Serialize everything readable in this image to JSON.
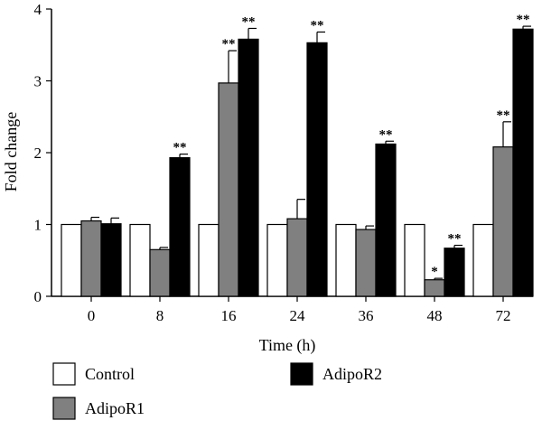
{
  "chart_data": {
    "type": "bar",
    "xlabel": "Time (h)",
    "ylabel": "Fold change",
    "ylim": [
      0,
      4
    ],
    "yticks": [
      "0",
      "1",
      "2",
      "3",
      "4"
    ],
    "categories": [
      "0",
      "8",
      "16",
      "24",
      "36",
      "48",
      "72"
    ],
    "series": [
      {
        "name": "Control",
        "color": "#ffffff",
        "values": [
          1.0,
          1.0,
          1.0,
          1.0,
          1.0,
          1.0,
          1.0
        ],
        "errors": [
          0,
          0,
          0,
          0,
          0,
          0,
          0
        ],
        "significance": [
          "",
          "",
          "",
          "",
          "",
          "",
          ""
        ]
      },
      {
        "name": "AdipoR1",
        "color": "#808080",
        "values": [
          1.05,
          0.65,
          2.97,
          1.08,
          0.93,
          0.23,
          2.08
        ],
        "errors": [
          0.05,
          0.03,
          0.45,
          0.27,
          0.05,
          0.02,
          0.35
        ],
        "significance": [
          "",
          "",
          "**",
          "",
          "",
          "*",
          "**"
        ]
      },
      {
        "name": "AdipoR2",
        "color": "#000000",
        "values": [
          1.01,
          1.93,
          3.58,
          3.53,
          2.12,
          0.67,
          3.72
        ],
        "errors": [
          0.08,
          0.05,
          0.15,
          0.15,
          0.04,
          0.04,
          0.04
        ],
        "significance": [
          "",
          "**",
          "**",
          "**",
          "**",
          "**",
          "**"
        ]
      }
    ],
    "legend_position": "bottom"
  }
}
